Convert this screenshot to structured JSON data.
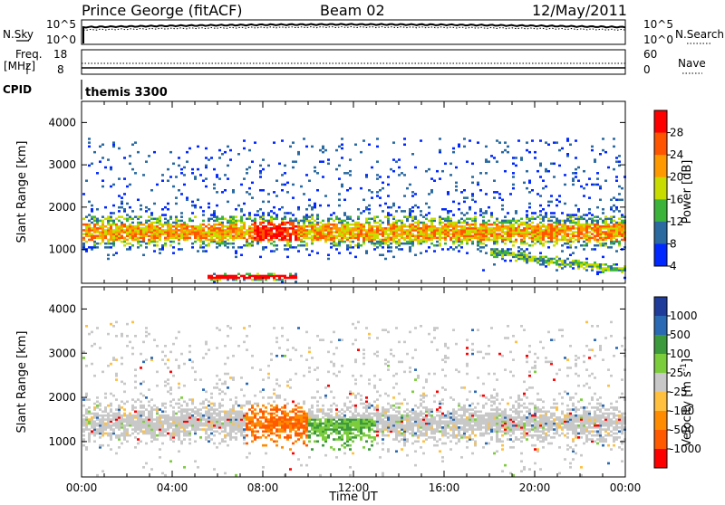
{
  "header": {
    "title": "Prince George (fitACF)",
    "beam": "Beam 02",
    "date": "12/May/2011"
  },
  "strips": {
    "nsky": {
      "label": "N.Sky",
      "ticks_left": [
        "10^5",
        "10^0"
      ],
      "right_label": "N.Search",
      "ticks_right": [
        "10^5",
        "10^0"
      ]
    },
    "freq": {
      "label_line1": "Freq.",
      "label_line2": "[MHz]",
      "ticks_left": [
        "18",
        "8"
      ],
      "right_label": "Nave",
      "ticks_right": [
        "60",
        "0"
      ]
    },
    "cpid": {
      "label": "CPID",
      "value": "themis 3300"
    }
  },
  "chart_data": [
    {
      "type": "heatmap",
      "title": "Power",
      "ylabel": "Slant Range [km]",
      "ylim": [
        200,
        4500
      ],
      "yticks": [
        "4000",
        "3000",
        "2000",
        "1000"
      ],
      "colorbar_label": "Power [dB]",
      "colorbar_ticks": [
        "28",
        "24",
        "20",
        "16",
        "12",
        "8",
        "4"
      ],
      "colors": [
        "#ff0000",
        "#ff5500",
        "#ff9900",
        "#c8dc00",
        "#3cb43c",
        "#2a6aa0",
        "#0028ff"
      ],
      "bands": [
        {
          "x": [
            0,
            24
          ],
          "y_center": 1400,
          "width": 350
        },
        {
          "x": [
            6,
            9
          ],
          "y_center": 300,
          "width": 80
        },
        {
          "x": [
            19,
            24
          ],
          "y_center": 500,
          "width": 120
        }
      ]
    },
    {
      "type": "heatmap",
      "title": "Velocity",
      "ylabel": "Slant Range [km]",
      "ylim": [
        200,
        4500
      ],
      "yticks": [
        "4000",
        "3000",
        "2000",
        "1000"
      ],
      "colorbar_label": "Velocity [m s^-1]",
      "colorbar_ticks": [
        "1000",
        "500",
        "100",
        "25",
        "-25",
        "-100",
        "-500",
        "-1000"
      ],
      "colors": [
        "#1f3c9b",
        "#2a6ab4",
        "#3c9a3c",
        "#7ccd3c",
        "#c8c8c8",
        "#ffc040",
        "#ff8c00",
        "#ff5a00",
        "#ff0000"
      ],
      "xlabel": "Time UT",
      "xticks": [
        "00:00",
        "04:00",
        "08:00",
        "12:00",
        "16:00",
        "20:00",
        "00:00"
      ]
    }
  ]
}
